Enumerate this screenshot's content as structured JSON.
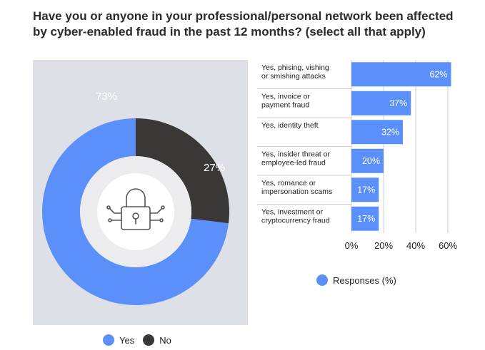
{
  "title": "Have you or anyone in your professional/personal network been affected by cyber-enabled fraud in the past 12 months? (select all that apply)",
  "colors": {
    "blue": "#5b8ff9",
    "dark": "#3a3836",
    "panel": "#dde0e6",
    "grid": "#cccccc"
  },
  "icon": "padlock-circuit-icon",
  "chart_data": [
    {
      "type": "pie",
      "donut": true,
      "labels": [
        "Yes",
        "No"
      ],
      "values": [
        73,
        27
      ],
      "data_labels": [
        "73%",
        "27%"
      ],
      "colors": [
        "#5b8ff9",
        "#3a3836"
      ],
      "legend": [
        {
          "label": "Yes",
          "color": "#5b8ff9"
        },
        {
          "label": "No",
          "color": "#3a3836"
        }
      ],
      "legend_position": "bottom"
    },
    {
      "type": "bar",
      "orientation": "horizontal",
      "categories": [
        [
          "Yes, phising, vishing",
          "or smishing attacks"
        ],
        [
          "Yes, invoice or",
          "payment fraud"
        ],
        [
          "Yes, identity theft"
        ],
        [
          "Yes, insider threat or",
          "employee-led fraud"
        ],
        [
          "Yes, romance or",
          "impersonation scams"
        ],
        [
          "Yes, investment or",
          "cryptocurrency fraud"
        ]
      ],
      "values": [
        62,
        37,
        32,
        20,
        17,
        17
      ],
      "data_labels": [
        "62%",
        "37%",
        "32%",
        "20%",
        "17%",
        "17%"
      ],
      "xlim": [
        0,
        60
      ],
      "xticks": [
        0,
        20,
        40,
        60
      ],
      "xtick_labels": [
        "0%",
        "20%",
        "40%",
        "60%"
      ],
      "grid": true,
      "color": "#5b8ff9",
      "legend": [
        {
          "label": "Responses (%)",
          "color": "#5b8ff9"
        }
      ],
      "legend_position": "bottom"
    }
  ]
}
